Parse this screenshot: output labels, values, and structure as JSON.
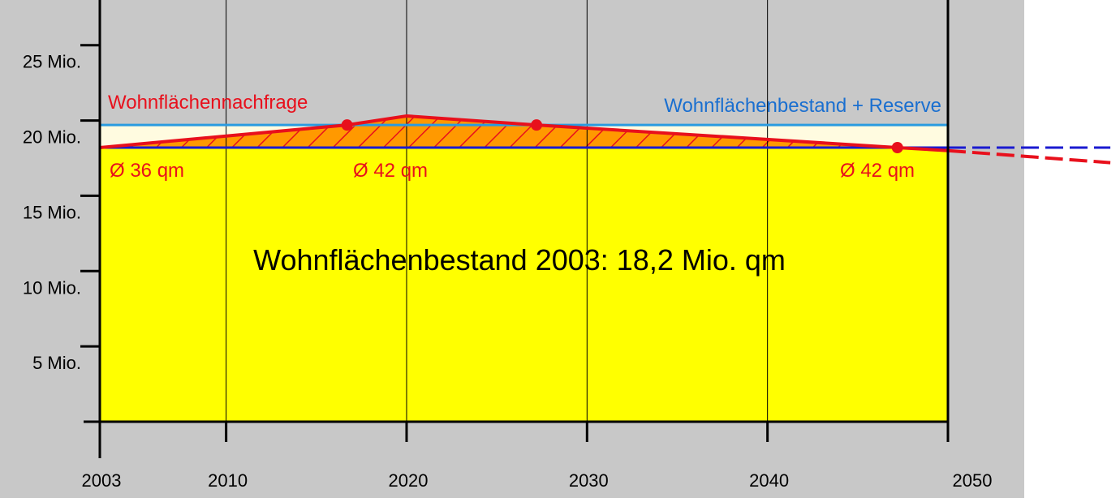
{
  "chart_data": {
    "type": "line",
    "xlim": [
      2003,
      2050
    ],
    "xticks": [
      2003,
      2010,
      2020,
      2030,
      2040,
      2050
    ],
    "ylim": [
      0,
      28
    ],
    "yticks": [
      {
        "value": 5,
        "label": "5 Mio."
      },
      {
        "value": 10,
        "label": "10 Mio."
      },
      {
        "value": 15,
        "label": "15 Mio."
      },
      {
        "value": 20,
        "label": "20 Mio."
      },
      {
        "value": 25,
        "label": "25 Mio."
      }
    ],
    "grid": true,
    "series": [
      {
        "name": "Wohnflächennachfrage",
        "color": "#e8101c",
        "x": [
          2003,
          2016.7,
          2020,
          2027.2,
          2047.2,
          2050,
          2059
        ],
        "values": [
          18.2,
          19.7,
          20.3,
          19.7,
          18.2,
          18.0,
          17.2
        ]
      },
      {
        "name": "Wohnflächenbestand + Reserve",
        "color": "#2a9be0",
        "x": [
          2003,
          2050
        ],
        "values": [
          19.7,
          19.7
        ]
      },
      {
        "name": "Wohnflächenbestand 2003: 18,2 Mio. qm",
        "color": "#1a1ad0",
        "x": [
          2003,
          2050,
          2059
        ],
        "values": [
          18.2,
          18.2,
          18.2
        ]
      }
    ],
    "markers": {
      "x": [
        2016.7,
        2027.2,
        2047.2
      ],
      "values": [
        19.7,
        19.7,
        18.2
      ]
    },
    "annotations": [
      "Ø 36 qm",
      "Ø 42 qm",
      "Ø 42 qm"
    ]
  }
}
